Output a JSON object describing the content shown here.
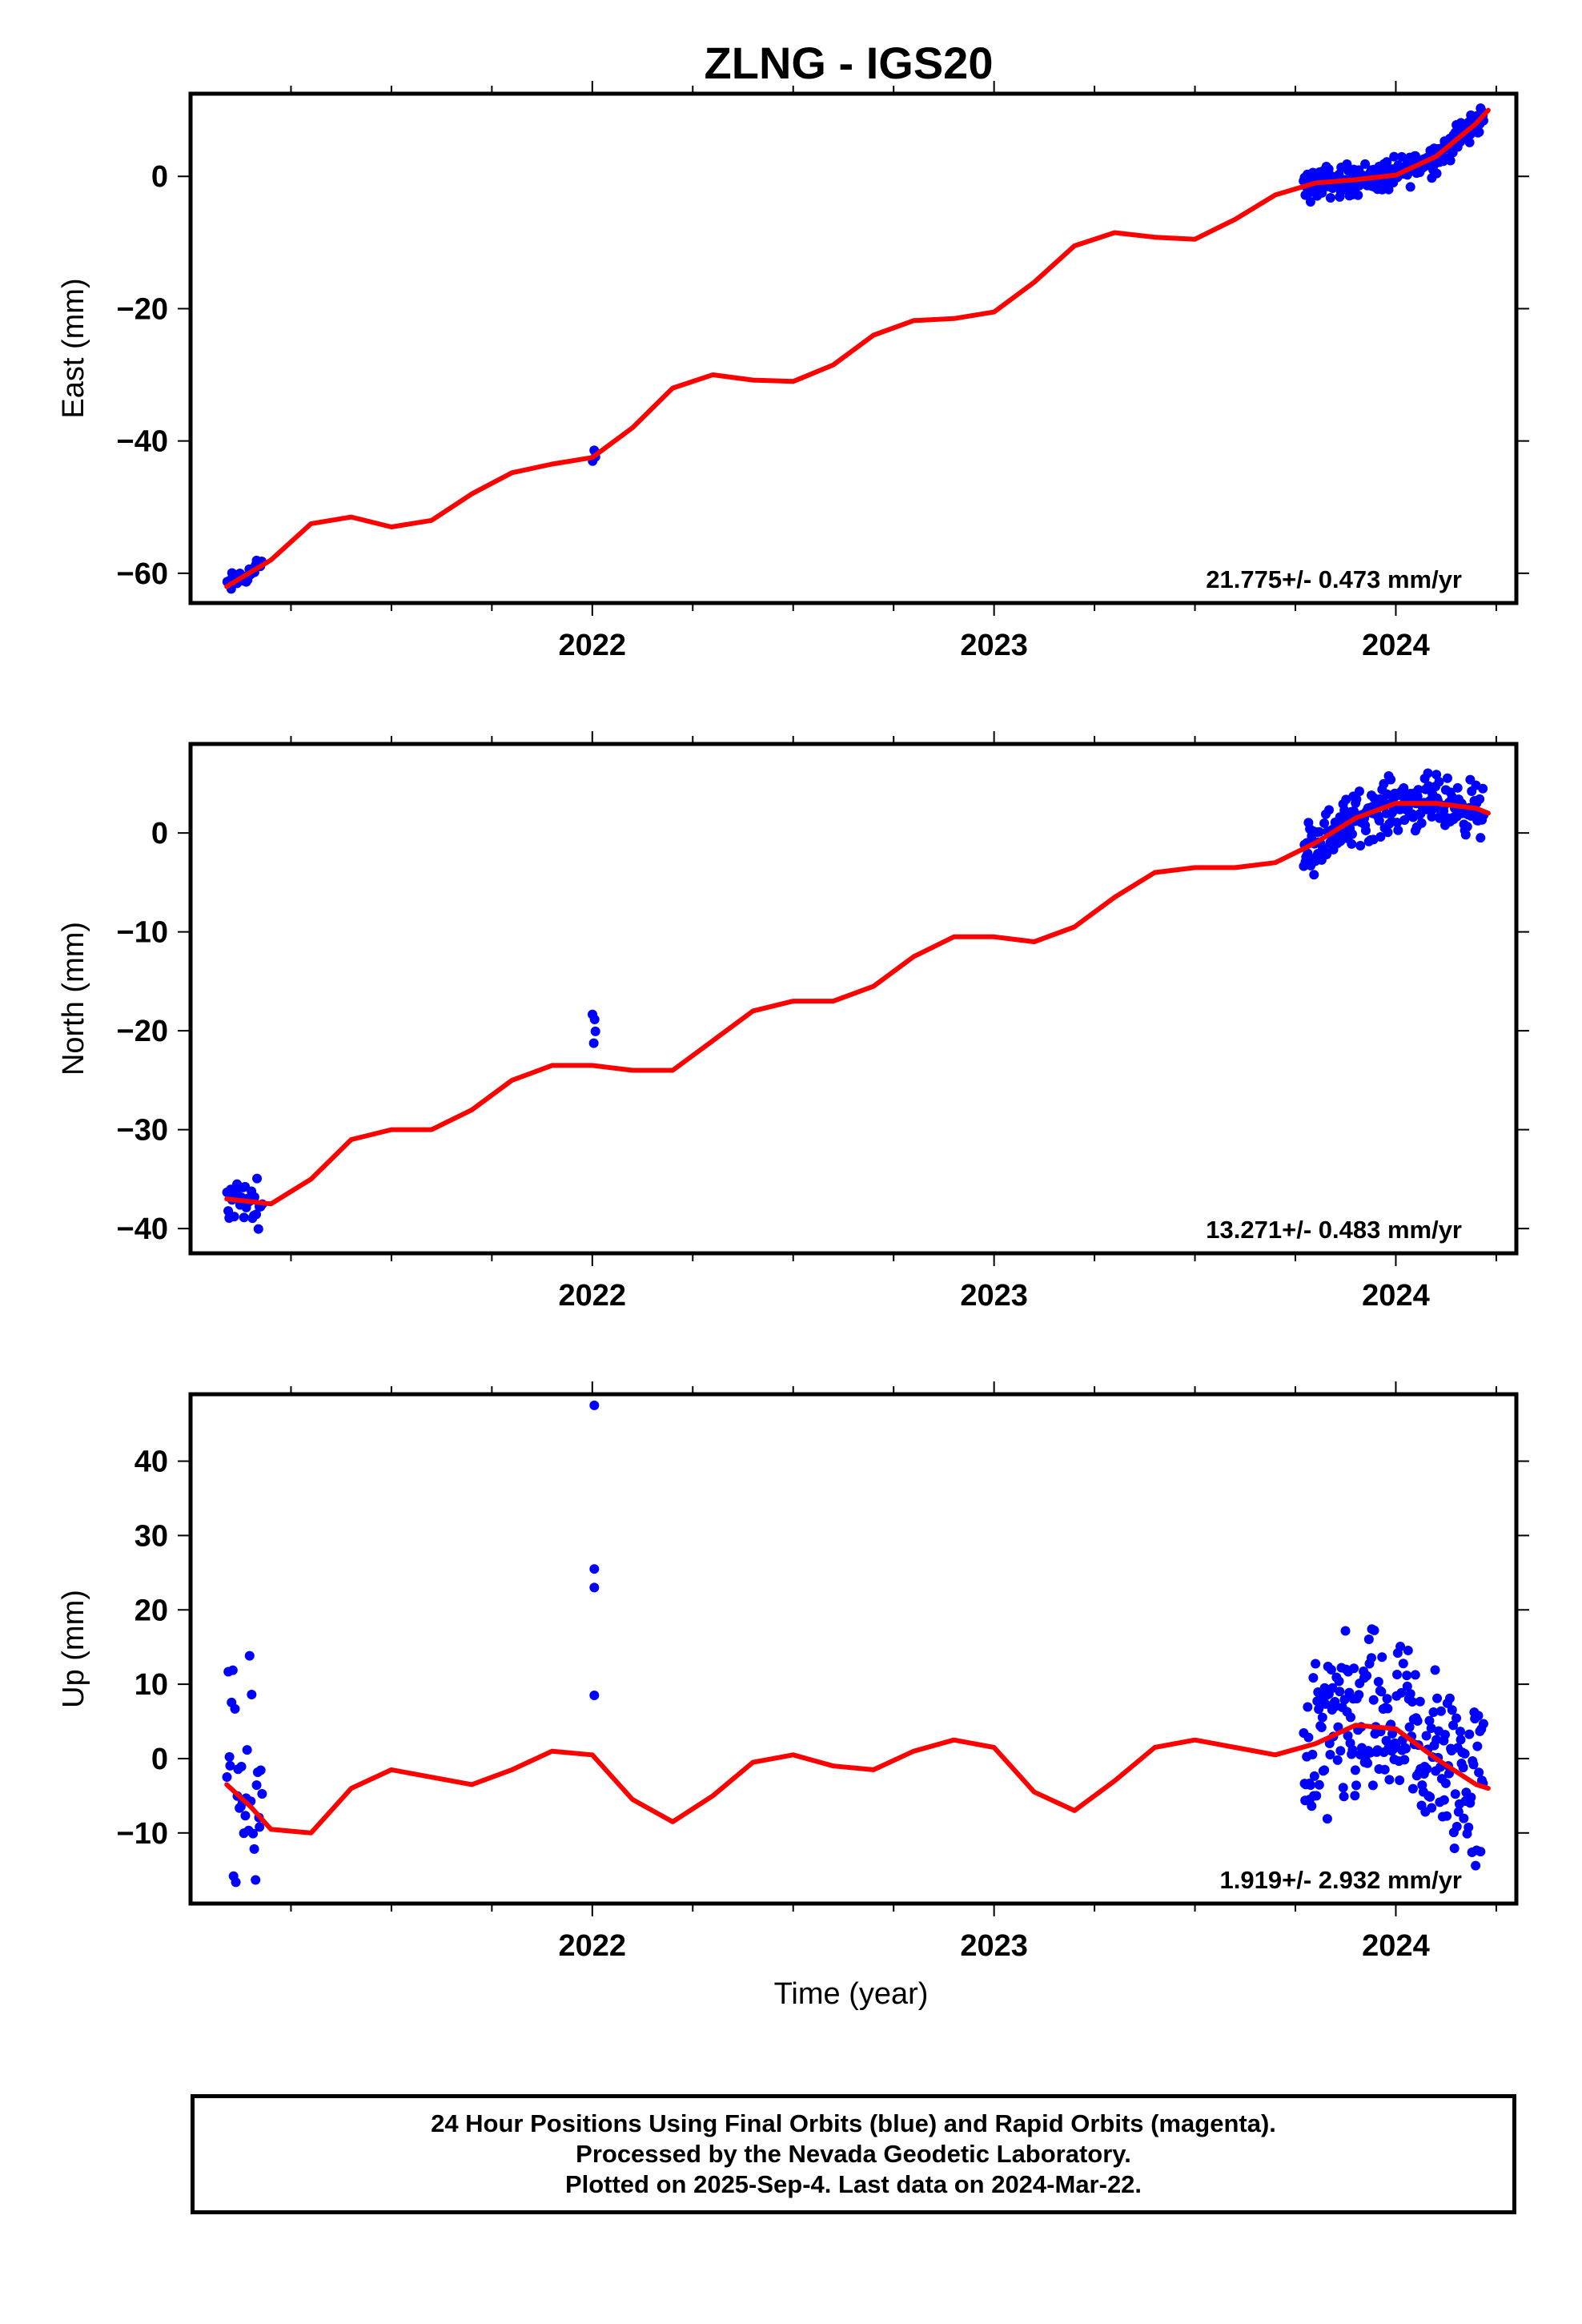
{
  "title": "ZLNG - IGS20",
  "xlabel": "Time (year)",
  "colors": {
    "final_orbits": "#0000ff",
    "fit": "#ff0000",
    "axes": "#000000"
  },
  "footer": {
    "line1": "24 Hour Positions Using Final Orbits (blue) and Rapid Orbits (magenta).",
    "line2": "Processed by the Nevada Geodetic Laboratory.",
    "line3": "Plotted on 2025-Sep-4. Last data on 2024-Mar-22."
  },
  "chart_data": [
    {
      "type": "scatter",
      "name": "East",
      "ylabel": "East (mm)",
      "rate_label": "21.775+/- 0.473 mm/yr",
      "xlim": [
        2021.0,
        2024.3
      ],
      "ylim": [
        -64.5,
        12.5
      ],
      "x_ticks": [
        2022,
        2023,
        2024
      ],
      "y_ticks": [
        0,
        -20,
        -40,
        -60
      ],
      "fit": {
        "x": [
          2021.09,
          2021.2,
          2021.3,
          2021.4,
          2021.5,
          2021.6,
          2021.7,
          2021.8,
          2021.9,
          2022.0,
          2022.1,
          2022.2,
          2022.3,
          2022.4,
          2022.5,
          2022.6,
          2022.7,
          2022.8,
          2022.9,
          2023.0,
          2023.1,
          2023.2,
          2023.3,
          2023.4,
          2023.5,
          2023.6,
          2023.7,
          2023.8,
          2023.9,
          2024.0,
          2024.1,
          2024.2,
          2024.23
        ],
        "y": [
          -62.0,
          -58.0,
          -52.5,
          -51.5,
          -53.0,
          -52.0,
          -48.0,
          -44.8,
          -43.5,
          -42.5,
          -38.0,
          -32.0,
          -30.0,
          -30.8,
          -31.0,
          -28.5,
          -24.0,
          -21.8,
          -21.5,
          -20.5,
          -16.0,
          -10.5,
          -8.5,
          -9.2,
          -9.5,
          -6.5,
          -2.8,
          -1.0,
          -0.5,
          0.2,
          3.0,
          8.0,
          10.0
        ]
      },
      "clusters": [
        {
          "x0": 2021.09,
          "x1": 2021.18,
          "n": 28,
          "offset": 1.2
        },
        {
          "x0": 2022.0,
          "x1": 2022.01,
          "n": 3,
          "offset": 0.6
        },
        {
          "x0": 2023.77,
          "x1": 2024.22,
          "n": 230,
          "offset": 1.8
        }
      ]
    },
    {
      "type": "scatter",
      "name": "North",
      "ylabel": "North (mm)",
      "rate_label": "13.271+/- 0.483 mm/yr",
      "xlim": [
        2021.0,
        2024.3
      ],
      "ylim": [
        -42.5,
        9.0
      ],
      "x_ticks": [
        2022,
        2023,
        2024
      ],
      "y_ticks": [
        0,
        -10,
        -20,
        -30,
        -40
      ],
      "fit": {
        "x": [
          2021.09,
          2021.2,
          2021.3,
          2021.4,
          2021.5,
          2021.6,
          2021.7,
          2021.8,
          2021.9,
          2022.0,
          2022.1,
          2022.2,
          2022.3,
          2022.4,
          2022.5,
          2022.6,
          2022.7,
          2022.8,
          2022.9,
          2023.0,
          2023.1,
          2023.2,
          2023.3,
          2023.4,
          2023.5,
          2023.6,
          2023.7,
          2023.8,
          2023.9,
          2024.0,
          2024.1,
          2024.2,
          2024.23
        ],
        "y": [
          -37.0,
          -37.5,
          -35.0,
          -31.0,
          -30.0,
          -30.0,
          -28.0,
          -25.0,
          -23.5,
          -23.5,
          -24.0,
          -24.0,
          -21.0,
          -18.0,
          -17.0,
          -17.0,
          -15.5,
          -12.5,
          -10.5,
          -10.5,
          -11.0,
          -9.5,
          -6.5,
          -4.0,
          -3.5,
          -3.5,
          -3.0,
          -1.0,
          1.5,
          3.0,
          3.0,
          2.5,
          2.0
        ]
      },
      "clusters": [
        {
          "x0": 2021.09,
          "x1": 2021.18,
          "n": 30,
          "offset": 1.6
        },
        {
          "x0": 2022.0,
          "x1": 2022.01,
          "n": 4,
          "offset": 1.6,
          "center": -19.5
        },
        {
          "x0": 2023.77,
          "x1": 2024.22,
          "n": 230,
          "offset": 2.0
        }
      ]
    },
    {
      "type": "scatter",
      "name": "Up",
      "ylabel": "Up (mm)",
      "rate_label": "1.919+/- 2.932 mm/yr",
      "xlim": [
        2021.0,
        2024.3
      ],
      "ylim": [
        -19.5,
        49.0
      ],
      "x_ticks": [
        2022,
        2023,
        2024
      ],
      "y_ticks": [
        40,
        30,
        20,
        10,
        0,
        -10
      ],
      "fit": {
        "x": [
          2021.09,
          2021.15,
          2021.2,
          2021.3,
          2021.4,
          2021.5,
          2021.6,
          2021.7,
          2021.8,
          2021.9,
          2022.0,
          2022.1,
          2022.2,
          2022.3,
          2022.4,
          2022.5,
          2022.6,
          2022.7,
          2022.8,
          2022.9,
          2023.0,
          2023.1,
          2023.2,
          2023.3,
          2023.4,
          2023.5,
          2023.6,
          2023.7,
          2023.8,
          2023.9,
          2024.0,
          2024.1,
          2024.2,
          2024.23
        ],
        "y": [
          -3.5,
          -6.5,
          -9.5,
          -10.0,
          -4.0,
          -1.5,
          -2.5,
          -3.5,
          -1.5,
          1.0,
          0.5,
          -5.5,
          -8.5,
          -5.0,
          -0.5,
          0.5,
          -1.0,
          -1.5,
          1.0,
          2.5,
          1.5,
          -4.5,
          -7.0,
          -3.0,
          1.5,
          2.5,
          1.5,
          0.5,
          2.0,
          4.5,
          4.0,
          0.0,
          -3.5,
          -4.0
        ]
      },
      "clusters": [
        {
          "x0": 2021.09,
          "x1": 2021.18,
          "n": 32,
          "offset": 12.0
        },
        {
          "x0": 2022.0,
          "x1": 2022.01,
          "n": 4,
          "offset": 0,
          "points": [
            47.5,
            25.5,
            23.0,
            8.5
          ]
        },
        {
          "x0": 2023.77,
          "x1": 2024.22,
          "n": 230,
          "offset": 9.0
        }
      ]
    }
  ]
}
